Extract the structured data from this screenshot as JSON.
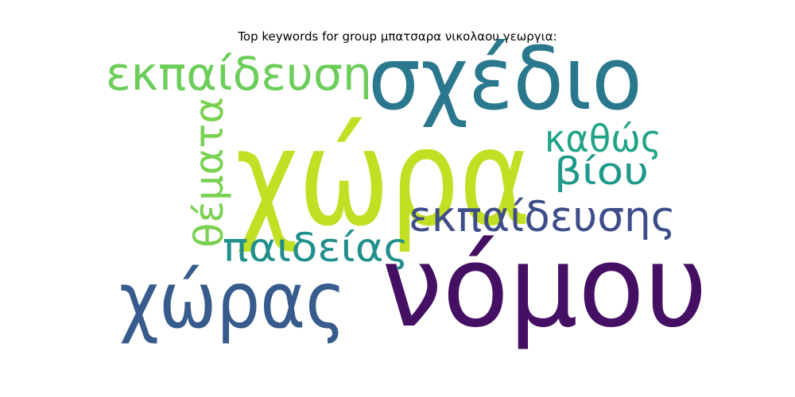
{
  "chart_data": {
    "type": "wordcloud",
    "title": "Top keywords for group μπατσαρα νικολαου γεωργια:",
    "words": [
      {
        "text": "χώρα",
        "weight": 1.0,
        "color": "#c2df23"
      },
      {
        "text": "νόμου",
        "weight": 0.86,
        "color": "#450f63"
      },
      {
        "text": "σχέδιο",
        "weight": 0.66,
        "color": "#2a788e"
      },
      {
        "text": "χώρας",
        "weight": 0.6,
        "color": "#365b8c"
      },
      {
        "text": "εκπαίδευση",
        "weight": 0.42,
        "color": "#6ccd5a"
      },
      {
        "text": "εκπαίδευσης",
        "weight": 0.38,
        "color": "#3e4d8a"
      },
      {
        "text": "παιδείας",
        "weight": 0.35,
        "color": "#21908d"
      },
      {
        "text": "θέματα",
        "weight": 0.35,
        "color": "#7ad151"
      },
      {
        "text": "καθώς",
        "weight": 0.32,
        "color": "#20a386"
      },
      {
        "text": "βίου",
        "weight": 0.32,
        "color": "#1f9a8a"
      }
    ]
  }
}
